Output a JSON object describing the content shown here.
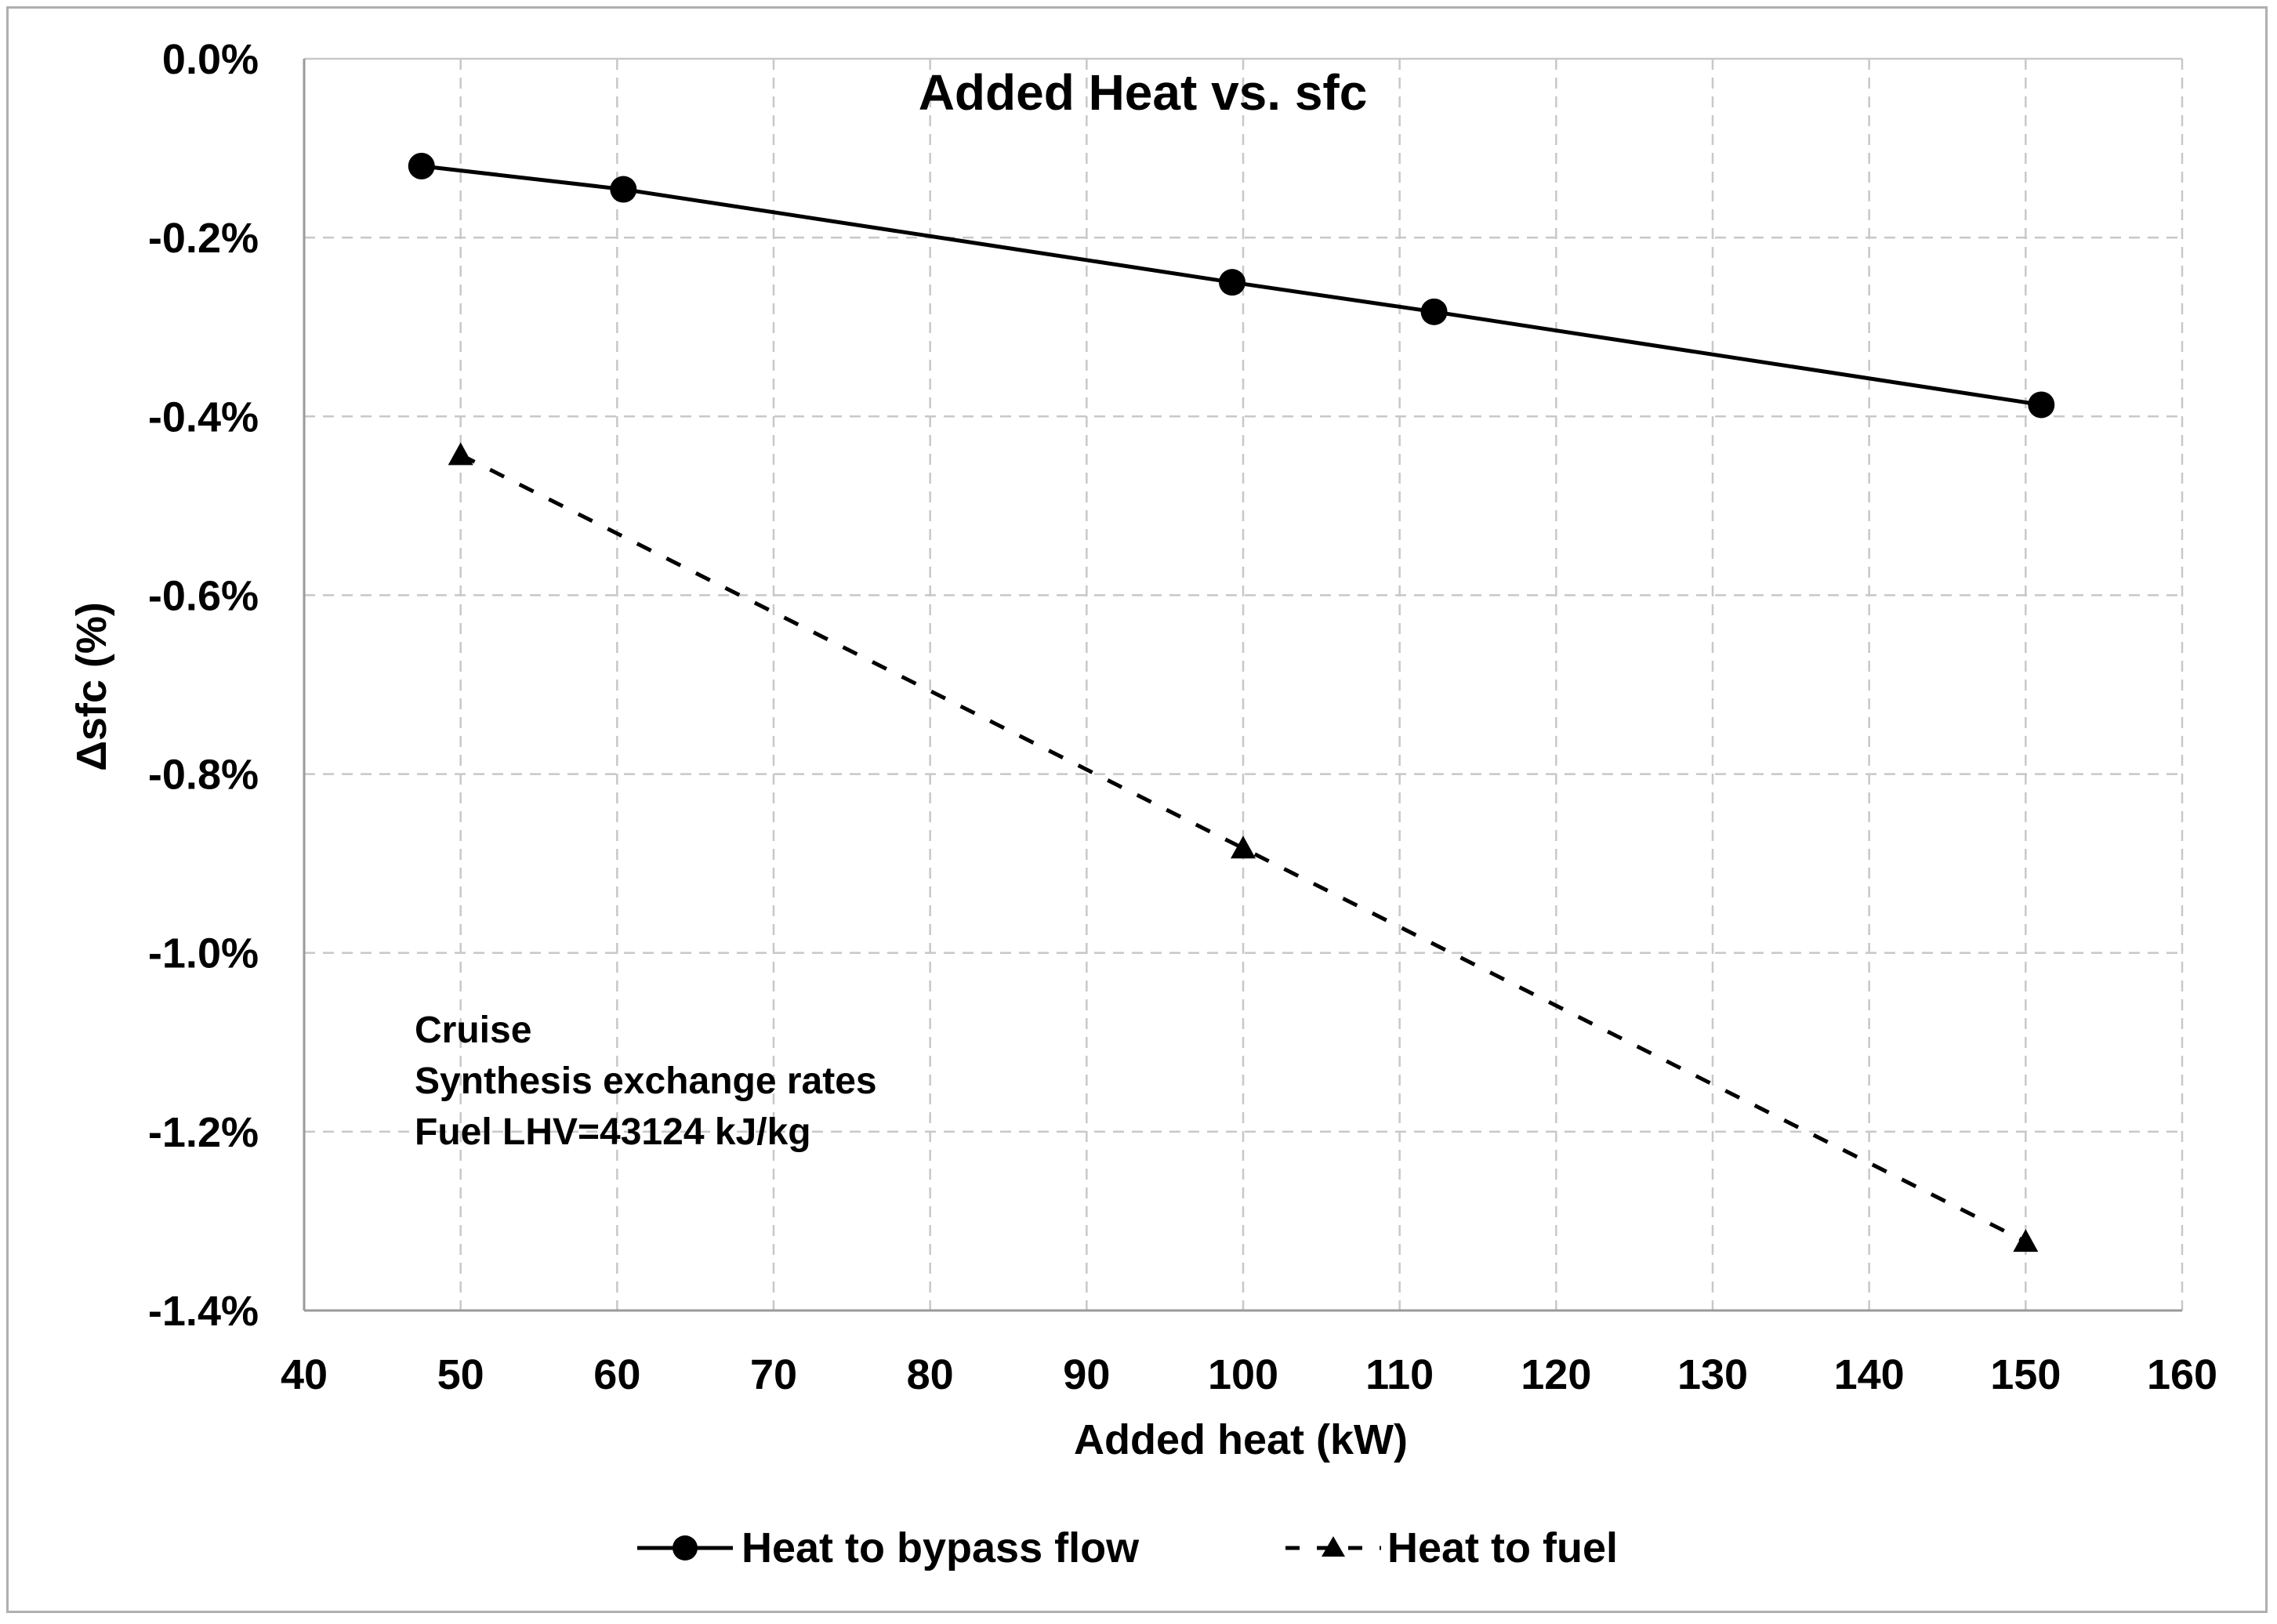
{
  "chart_data": {
    "type": "line",
    "title": "Added Heat vs. sfc",
    "xlabel": "Added heat (kW)",
    "ylabel": "Δsfc (%)",
    "xlim": [
      40,
      160
    ],
    "ylim": [
      -1.4,
      0.0
    ],
    "x_ticks": [
      40,
      50,
      60,
      70,
      80,
      90,
      100,
      110,
      120,
      130,
      140,
      150,
      160
    ],
    "x_tick_labels": [
      "40",
      "50",
      "60",
      "70",
      "80",
      "90",
      "100",
      "110",
      "120",
      "130",
      "140",
      "150",
      "160"
    ],
    "y_ticks": [
      0.0,
      -0.2,
      -0.4,
      -0.6,
      -0.8,
      -1.0,
      -1.2,
      -1.4
    ],
    "y_tick_labels": [
      "0.0%",
      "-0.2%",
      "-0.4%",
      "-0.6%",
      "-0.8%",
      "-1.0%",
      "-1.2%",
      "-1.4%"
    ],
    "grid": true,
    "legend_position": "bottom",
    "series": [
      {
        "name": "Heat to bypass flow",
        "marker": "circle",
        "line_style": "solid",
        "color": "#000000",
        "x": [
          47.5,
          60.4,
          99.3,
          112.2,
          151.0
        ],
        "y": [
          -0.12,
          -0.146,
          -0.25,
          -0.283,
          -0.387
        ]
      },
      {
        "name": "Heat to fuel",
        "marker": "triangle",
        "line_style": "dashed",
        "color": "#000000",
        "x": [
          50,
          100,
          150
        ],
        "y": [
          -0.443,
          -0.883,
          -1.323
        ]
      }
    ],
    "annotations": [
      "Cruise",
      "Synthesis exchange rates",
      "Fuel LHV=43124 kJ/kg"
    ]
  }
}
